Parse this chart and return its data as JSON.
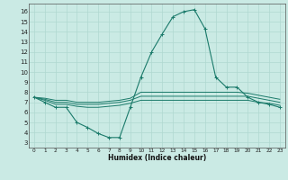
{
  "xlabel": "Humidex (Indice chaleur)",
  "background_color": "#caeae4",
  "grid_color": "#b0d8d0",
  "line_color": "#1a7a6a",
  "xlim": [
    -0.5,
    23.5
  ],
  "ylim": [
    2.5,
    16.8
  ],
  "x_ticks": [
    0,
    1,
    2,
    3,
    4,
    5,
    6,
    7,
    8,
    9,
    10,
    11,
    12,
    13,
    14,
    15,
    16,
    17,
    18,
    19,
    20,
    21,
    22,
    23
  ],
  "y_ticks": [
    3,
    4,
    5,
    6,
    7,
    8,
    9,
    10,
    11,
    12,
    13,
    14,
    15,
    16
  ],
  "series_main": {
    "x": [
      0,
      1,
      2,
      3,
      4,
      5,
      6,
      7,
      8,
      9,
      10,
      11,
      12,
      13,
      14,
      15,
      16,
      17,
      18,
      19,
      20,
      21,
      22,
      23
    ],
    "y": [
      7.5,
      7.0,
      6.5,
      6.5,
      5.0,
      4.5,
      3.9,
      3.5,
      3.5,
      6.5,
      9.5,
      12.0,
      13.8,
      15.5,
      16.0,
      16.2,
      14.3,
      9.5,
      8.5,
      8.5,
      7.5,
      7.0,
      6.8,
      6.5
    ]
  },
  "series_flat": [
    [
      7.5,
      7.2,
      6.8,
      6.8,
      6.6,
      6.5,
      6.5,
      6.6,
      6.7,
      6.9,
      7.2,
      7.2,
      7.2,
      7.2,
      7.2,
      7.2,
      7.2,
      7.2,
      7.2,
      7.2,
      7.2,
      7.0,
      6.9,
      6.7
    ],
    [
      7.5,
      7.3,
      7.0,
      7.0,
      6.8,
      6.8,
      6.8,
      6.9,
      7.0,
      7.2,
      7.6,
      7.6,
      7.6,
      7.6,
      7.6,
      7.6,
      7.6,
      7.6,
      7.6,
      7.6,
      7.6,
      7.4,
      7.2,
      7.0
    ],
    [
      7.5,
      7.4,
      7.2,
      7.2,
      7.0,
      7.0,
      7.0,
      7.1,
      7.2,
      7.4,
      8.0,
      8.0,
      8.0,
      8.0,
      8.0,
      8.0,
      8.0,
      8.0,
      8.0,
      8.0,
      7.9,
      7.7,
      7.5,
      7.3
    ]
  ]
}
